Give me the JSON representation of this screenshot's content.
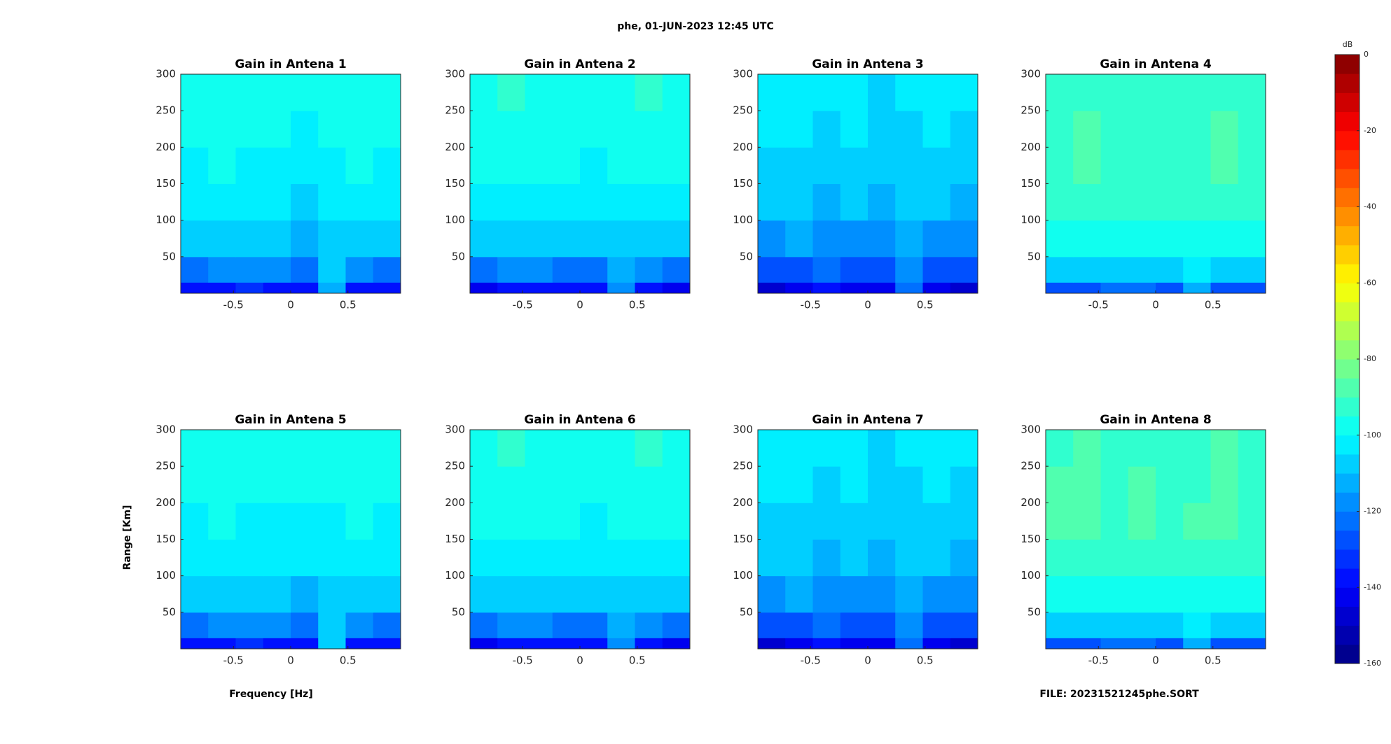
{
  "figure": {
    "title": "phe, 01-JUN-2023 12:45 UTC",
    "xlabel": "Frequency [Hz]",
    "ylabel": "Range [Km]",
    "footer": "FILE: 20231521245phe.SORT",
    "colorbar": {
      "label": "dB",
      "clim": [
        -160,
        0
      ],
      "ticks": [
        0,
        -20,
        -40,
        -60,
        -80,
        -100,
        -120,
        -140,
        -160
      ],
      "levels": 32
    }
  },
  "chart_data": [
    {
      "type": "heatmap",
      "title": "Gain in Antena 1",
      "xlim": [
        -0.96,
        0.96
      ],
      "ylim": [
        0,
        300
      ],
      "xticks": [
        -0.5,
        0,
        0.5
      ],
      "yticks": [
        50,
        100,
        150,
        200,
        250,
        300
      ],
      "x_bins": [
        -0.96,
        -0.72,
        -0.48,
        -0.24,
        0,
        0.24,
        0.48,
        0.72,
        0.96
      ],
      "y_bins": [
        0,
        15,
        50,
        100,
        150,
        200,
        250,
        300
      ],
      "z": [
        [
          -140,
          -138,
          -132,
          -136,
          -138,
          -112,
          -136,
          -140
        ],
        [
          -122,
          -120,
          -118,
          -120,
          -121,
          -108,
          -119,
          -122
        ],
        [
          -110,
          -108,
          -109,
          -110,
          -111,
          -106,
          -109,
          -110
        ],
        [
          -104,
          -103,
          -105,
          -104,
          -106,
          -103,
          -104,
          -105
        ],
        [
          -101,
          -100,
          -102,
          -101,
          -103,
          -101,
          -100,
          -102
        ],
        [
          -99,
          -98,
          -100,
          -99,
          -101,
          -100,
          -98,
          -100
        ],
        [
          -98,
          -97,
          -99,
          -98,
          -100,
          -99,
          -97,
          -99
        ]
      ]
    },
    {
      "type": "heatmap",
      "title": "Gain in Antena 2",
      "xlim": [
        -0.96,
        0.96
      ],
      "ylim": [
        0,
        300
      ],
      "xticks": [
        -0.5,
        0,
        0.5
      ],
      "yticks": [
        50,
        100,
        150,
        200,
        250,
        300
      ],
      "x_bins": [
        -0.96,
        -0.72,
        -0.48,
        -0.24,
        0,
        0.24,
        0.48,
        0.72,
        0.96
      ],
      "y_bins": [
        0,
        15,
        50,
        100,
        150,
        200,
        250,
        300
      ],
      "z": [
        [
          -142,
          -140,
          -136,
          -138,
          -140,
          -118,
          -139,
          -142
        ],
        [
          -122,
          -120,
          -119,
          -121,
          -122,
          -112,
          -120,
          -122
        ],
        [
          -108,
          -107,
          -108,
          -109,
          -110,
          -106,
          -108,
          -109
        ],
        [
          -102,
          -101,
          -103,
          -102,
          -104,
          -102,
          -102,
          -103
        ],
        [
          -99,
          -98,
          -100,
          -99,
          -101,
          -99,
          -98,
          -100
        ],
        [
          -97,
          -96,
          -98,
          -97,
          -99,
          -98,
          -96,
          -98
        ],
        [
          -96,
          -95,
          -97,
          -96,
          -98,
          -97,
          -95,
          -97
        ]
      ]
    },
    {
      "type": "heatmap",
      "title": "Gain in Antena 3",
      "xlim": [
        -0.96,
        0.96
      ],
      "ylim": [
        0,
        300
      ],
      "xticks": [
        -0.5,
        0,
        0.5
      ],
      "yticks": [
        50,
        100,
        150,
        200,
        250,
        300
      ],
      "x_bins": [
        -0.96,
        -0.72,
        -0.48,
        -0.24,
        0,
        0.24,
        0.48,
        0.72,
        0.96
      ],
      "y_bins": [
        0,
        15,
        50,
        100,
        150,
        200,
        250,
        300
      ],
      "z": [
        [
          -146,
          -144,
          -140,
          -142,
          -144,
          -122,
          -143,
          -146
        ],
        [
          -128,
          -126,
          -125,
          -127,
          -128,
          -116,
          -126,
          -128
        ],
        [
          -116,
          -115,
          -116,
          -117,
          -118,
          -113,
          -116,
          -117
        ],
        [
          -110,
          -109,
          -111,
          -110,
          -112,
          -110,
          -110,
          -111
        ],
        [
          -107,
          -106,
          -108,
          -107,
          -109,
          -107,
          -106,
          -108
        ],
        [
          -105,
          -104,
          -106,
          -105,
          -107,
          -106,
          -104,
          -106
        ],
        [
          -104,
          -103,
          -105,
          -104,
          -106,
          -105,
          -103,
          -105
        ]
      ]
    },
    {
      "type": "heatmap",
      "title": "Gain in Antena 4",
      "xlim": [
        -0.96,
        0.96
      ],
      "ylim": [
        0,
        300
      ],
      "xticks": [
        -0.5,
        0,
        0.5
      ],
      "yticks": [
        50,
        100,
        150,
        200,
        250,
        300
      ],
      "x_bins": [
        -0.96,
        -0.72,
        -0.48,
        -0.24,
        0,
        0.24,
        0.48,
        0.72,
        0.96
      ],
      "y_bins": [
        0,
        15,
        50,
        100,
        150,
        200,
        250,
        300
      ],
      "z": [
        [
          -128,
          -126,
          -124,
          -125,
          -127,
          -112,
          -126,
          -128
        ],
        [
          -110,
          -108,
          -108,
          -109,
          -110,
          -104,
          -109,
          -110
        ],
        [
          -99,
          -98,
          -99,
          -100,
          -100,
          -98,
          -99,
          -100
        ],
        [
          -94,
          -93,
          -95,
          -94,
          -95,
          -94,
          -94,
          -95
        ],
        [
          -91,
          -90,
          -92,
          -91,
          -93,
          -91,
          -90,
          -92
        ],
        [
          -91,
          -90,
          -92,
          -91,
          -92,
          -92,
          -90,
          -92
        ],
        [
          -92,
          -91,
          -93,
          -92,
          -93,
          -92,
          -91,
          -93
        ]
      ]
    },
    {
      "type": "heatmap",
      "title": "Gain in Antena 5",
      "xlim": [
        -0.96,
        0.96
      ],
      "ylim": [
        0,
        300
      ],
      "xticks": [
        -0.5,
        0,
        0.5
      ],
      "yticks": [
        50,
        100,
        150,
        200,
        250,
        300
      ],
      "x_bins": [
        -0.96,
        -0.72,
        -0.48,
        -0.24,
        0,
        0.24,
        0.48,
        0.72,
        0.96
      ],
      "y_bins": [
        0,
        15,
        50,
        100,
        150,
        200,
        250,
        300
      ],
      "z": [
        [
          -140,
          -138,
          -131,
          -136,
          -137,
          -110,
          -136,
          -140
        ],
        [
          -122,
          -120,
          -118,
          -120,
          -121,
          -107,
          -119,
          -122
        ],
        [
          -110,
          -109,
          -109,
          -110,
          -111,
          -106,
          -109,
          -110
        ],
        [
          -104,
          -103,
          -105,
          -104,
          -105,
          -103,
          -104,
          -105
        ],
        [
          -101,
          -100,
          -102,
          -101,
          -102,
          -101,
          -100,
          -102
        ],
        [
          -99,
          -98,
          -100,
          -99,
          -100,
          -100,
          -98,
          -100
        ],
        [
          -98,
          -97,
          -99,
          -98,
          -99,
          -99,
          -97,
          -99
        ]
      ]
    },
    {
      "type": "heatmap",
      "title": "Gain in Antena 6",
      "xlim": [
        -0.96,
        0.96
      ],
      "ylim": [
        0,
        300
      ],
      "xticks": [
        -0.5,
        0,
        0.5
      ],
      "yticks": [
        50,
        100,
        150,
        200,
        250,
        300
      ],
      "x_bins": [
        -0.96,
        -0.72,
        -0.48,
        -0.24,
        0,
        0.24,
        0.48,
        0.72,
        0.96
      ],
      "y_bins": [
        0,
        15,
        50,
        100,
        150,
        200,
        250,
        300
      ],
      "z": [
        [
          -142,
          -140,
          -136,
          -138,
          -140,
          -117,
          -139,
          -142
        ],
        [
          -122,
          -120,
          -119,
          -121,
          -122,
          -112,
          -120,
          -122
        ],
        [
          -108,
          -107,
          -108,
          -109,
          -110,
          -106,
          -108,
          -109
        ],
        [
          -102,
          -101,
          -103,
          -102,
          -104,
          -102,
          -102,
          -103
        ],
        [
          -99,
          -98,
          -100,
          -99,
          -101,
          -99,
          -98,
          -100
        ],
        [
          -97,
          -96,
          -98,
          -97,
          -99,
          -98,
          -96,
          -98
        ],
        [
          -96,
          -95,
          -97,
          -96,
          -98,
          -97,
          -95,
          -97
        ]
      ]
    },
    {
      "type": "heatmap",
      "title": "Gain in Antena 7",
      "xlim": [
        -0.96,
        0.96
      ],
      "ylim": [
        0,
        300
      ],
      "xticks": [
        -0.5,
        0,
        0.5
      ],
      "yticks": [
        50,
        100,
        150,
        200,
        250,
        300
      ],
      "x_bins": [
        -0.96,
        -0.72,
        -0.48,
        -0.24,
        0,
        0.24,
        0.48,
        0.72,
        0.96
      ],
      "y_bins": [
        0,
        15,
        50,
        100,
        150,
        200,
        250,
        300
      ],
      "z": [
        [
          -146,
          -144,
          -140,
          -142,
          -144,
          -121,
          -143,
          -146
        ],
        [
          -128,
          -126,
          -125,
          -127,
          -128,
          -116,
          -126,
          -128
        ],
        [
          -116,
          -115,
          -116,
          -117,
          -118,
          -113,
          -116,
          -117
        ],
        [
          -110,
          -109,
          -111,
          -110,
          -112,
          -110,
          -110,
          -111
        ],
        [
          -107,
          -106,
          -108,
          -107,
          -109,
          -107,
          -106,
          -108
        ],
        [
          -105,
          -104,
          -106,
          -105,
          -107,
          -106,
          -104,
          -106
        ],
        [
          -104,
          -103,
          -105,
          -104,
          -106,
          -105,
          -103,
          -105
        ]
      ]
    },
    {
      "type": "heatmap",
      "title": "Gain in Antena 8",
      "xlim": [
        -0.96,
        0.96
      ],
      "ylim": [
        0,
        300
      ],
      "xticks": [
        -0.5,
        0,
        0.5
      ],
      "yticks": [
        50,
        100,
        150,
        200,
        250,
        300
      ],
      "x_bins": [
        -0.96,
        -0.72,
        -0.48,
        -0.24,
        0,
        0.24,
        0.48,
        0.72,
        0.96
      ],
      "y_bins": [
        0,
        15,
        50,
        100,
        150,
        200,
        250,
        300
      ],
      "z": [
        [
          -128,
          -126,
          -124,
          -125,
          -127,
          -112,
          -126,
          -128
        ],
        [
          -110,
          -108,
          -108,
          -109,
          -110,
          -104,
          -109,
          -110
        ],
        [
          -99,
          -98,
          -99,
          -100,
          -100,
          -98,
          -99,
          -100
        ],
        [
          -94,
          -93,
          -95,
          -94,
          -95,
          -94,
          -94,
          -95
        ],
        [
          -90,
          -89,
          -91,
          -90,
          -92,
          -90,
          -89,
          -91
        ],
        [
          -90,
          -89,
          -91,
          -90,
          -91,
          -91,
          -89,
          -91
        ],
        [
          -91,
          -90,
          -92,
          -91,
          -92,
          -91,
          -90,
          -92
        ]
      ]
    }
  ]
}
